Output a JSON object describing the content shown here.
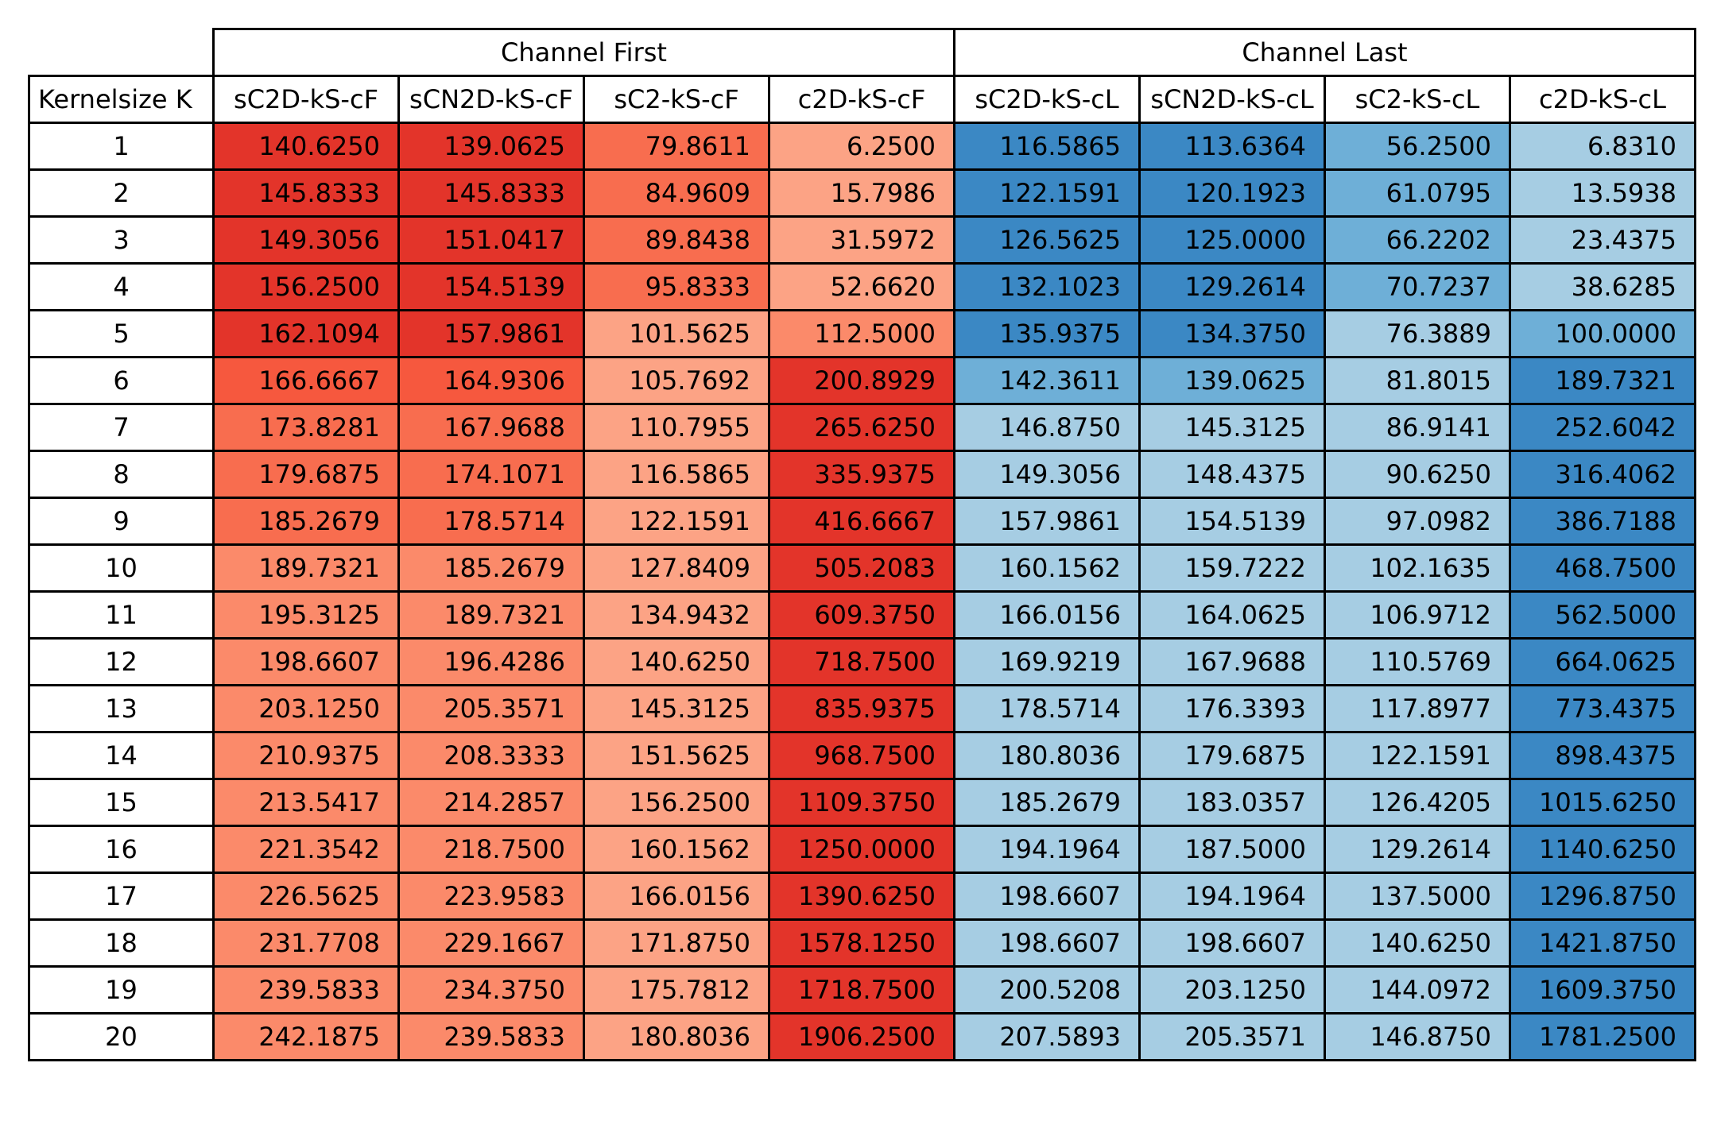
{
  "chart_data": {
    "type": "table",
    "group_headers": [
      "Channel First",
      "Channel Last"
    ],
    "row_header": "Kernelsize  K",
    "columns": [
      "sC2D-kS-cF",
      "sCN2D-kS-cF",
      "sC2-kS-cF",
      "c2D-kS-cF",
      "sC2D-kS-cL",
      "sCN2D-kS-cL",
      "sC2-kS-cL",
      "c2D-kS-cL"
    ],
    "kernel_sizes": [
      "1",
      "2",
      "3",
      "4",
      "5",
      "6",
      "7",
      "8",
      "9",
      "10",
      "11",
      "12",
      "13",
      "14",
      "15",
      "16",
      "17",
      "18",
      "19",
      "20"
    ],
    "values": [
      [
        "140.6250",
        "139.0625",
        "79.8611",
        "6.2500",
        "116.5865",
        "113.6364",
        "56.2500",
        "6.8310"
      ],
      [
        "145.8333",
        "145.8333",
        "84.9609",
        "15.7986",
        "122.1591",
        "120.1923",
        "61.0795",
        "13.5938"
      ],
      [
        "149.3056",
        "151.0417",
        "89.8438",
        "31.5972",
        "126.5625",
        "125.0000",
        "66.2202",
        "23.4375"
      ],
      [
        "156.2500",
        "154.5139",
        "95.8333",
        "52.6620",
        "132.1023",
        "129.2614",
        "70.7237",
        "38.6285"
      ],
      [
        "162.1094",
        "157.9861",
        "101.5625",
        "112.5000",
        "135.9375",
        "134.3750",
        "76.3889",
        "100.0000"
      ],
      [
        "166.6667",
        "164.9306",
        "105.7692",
        "200.8929",
        "142.3611",
        "139.0625",
        "81.8015",
        "189.7321"
      ],
      [
        "173.8281",
        "167.9688",
        "110.7955",
        "265.6250",
        "146.8750",
        "145.3125",
        "86.9141",
        "252.6042"
      ],
      [
        "179.6875",
        "174.1071",
        "116.5865",
        "335.9375",
        "149.3056",
        "148.4375",
        "90.6250",
        "316.4062"
      ],
      [
        "185.2679",
        "178.5714",
        "122.1591",
        "416.6667",
        "157.9861",
        "154.5139",
        "97.0982",
        "386.7188"
      ],
      [
        "189.7321",
        "185.2679",
        "127.8409",
        "505.2083",
        "160.1562",
        "159.7222",
        "102.1635",
        "468.7500"
      ],
      [
        "195.3125",
        "189.7321",
        "134.9432",
        "609.3750",
        "166.0156",
        "164.0625",
        "106.9712",
        "562.5000"
      ],
      [
        "198.6607",
        "196.4286",
        "140.6250",
        "718.7500",
        "169.9219",
        "167.9688",
        "110.5769",
        "664.0625"
      ],
      [
        "203.1250",
        "205.3571",
        "145.3125",
        "835.9375",
        "178.5714",
        "176.3393",
        "117.8977",
        "773.4375"
      ],
      [
        "210.9375",
        "208.3333",
        "151.5625",
        "968.7500",
        "180.8036",
        "179.6875",
        "122.1591",
        "898.4375"
      ],
      [
        "213.5417",
        "214.2857",
        "156.2500",
        "1109.3750",
        "185.2679",
        "183.0357",
        "126.4205",
        "1015.6250"
      ],
      [
        "221.3542",
        "218.7500",
        "160.1562",
        "1250.0000",
        "194.1964",
        "187.5000",
        "129.2614",
        "1140.6250"
      ],
      [
        "226.5625",
        "223.9583",
        "166.0156",
        "1390.6250",
        "198.6607",
        "194.1964",
        "137.5000",
        "1296.8750"
      ],
      [
        "231.7708",
        "229.1667",
        "171.8750",
        "1578.1250",
        "198.6607",
        "198.6607",
        "140.6250",
        "1421.8750"
      ],
      [
        "239.5833",
        "234.3750",
        "175.7812",
        "1718.7500",
        "200.5208",
        "203.1250",
        "144.0972",
        "1609.3750"
      ],
      [
        "242.1875",
        "239.5833",
        "180.8036",
        "1906.2500",
        "207.5893",
        "205.3571",
        "146.8750",
        "1781.2500"
      ]
    ],
    "cell_colors": [
      [
        "#e3342a",
        "#e3342a",
        "#f86d4f",
        "#fca385",
        "#3b88c4",
        "#3b88c4",
        "#6eafd7",
        "#a6cde3"
      ],
      [
        "#e3342a",
        "#e3342a",
        "#f86d4f",
        "#fca385",
        "#3b88c4",
        "#3b88c4",
        "#6eafd7",
        "#a6cde3"
      ],
      [
        "#e3342a",
        "#e3342a",
        "#f86d4f",
        "#fca385",
        "#3b88c4",
        "#3b88c4",
        "#6eafd7",
        "#a6cde3"
      ],
      [
        "#e3342a",
        "#e3342a",
        "#f86d4f",
        "#fca385",
        "#3b88c4",
        "#3b88c4",
        "#6eafd7",
        "#a6cde3"
      ],
      [
        "#e3342a",
        "#e3342a",
        "#fca385",
        "#fb8a6a",
        "#3b88c4",
        "#3b88c4",
        "#a6cde3",
        "#6eafd7"
      ],
      [
        "#f6583e",
        "#f6583e",
        "#fca385",
        "#e3342a",
        "#6eafd7",
        "#6eafd7",
        "#a6cde3",
        "#3b88c4"
      ],
      [
        "#f86d4f",
        "#f86d4f",
        "#fca385",
        "#e3342a",
        "#a6cde3",
        "#a6cde3",
        "#a6cde3",
        "#3b88c4"
      ],
      [
        "#f86d4f",
        "#f86d4f",
        "#fca385",
        "#e3342a",
        "#a6cde3",
        "#a6cde3",
        "#a6cde3",
        "#3b88c4"
      ],
      [
        "#f86d4f",
        "#f86d4f",
        "#fca385",
        "#e3342a",
        "#a6cde3",
        "#a6cde3",
        "#a6cde3",
        "#3b88c4"
      ],
      [
        "#fb8a6a",
        "#fb8a6a",
        "#fca385",
        "#e3342a",
        "#a6cde3",
        "#a6cde3",
        "#a6cde3",
        "#3b88c4"
      ],
      [
        "#fb8a6a",
        "#fb8a6a",
        "#fca385",
        "#e3342a",
        "#a6cde3",
        "#a6cde3",
        "#a6cde3",
        "#3b88c4"
      ],
      [
        "#fb8a6a",
        "#fb8a6a",
        "#fca385",
        "#e3342a",
        "#a6cde3",
        "#a6cde3",
        "#a6cde3",
        "#3b88c4"
      ],
      [
        "#fb8a6a",
        "#fb8a6a",
        "#fca385",
        "#e3342a",
        "#a6cde3",
        "#a6cde3",
        "#a6cde3",
        "#3b88c4"
      ],
      [
        "#fb8a6a",
        "#fb8a6a",
        "#fca385",
        "#e3342a",
        "#a6cde3",
        "#a6cde3",
        "#a6cde3",
        "#3b88c4"
      ],
      [
        "#fb8a6a",
        "#fb8a6a",
        "#fca385",
        "#e3342a",
        "#a6cde3",
        "#a6cde3",
        "#a6cde3",
        "#3b88c4"
      ],
      [
        "#fb8a6a",
        "#fb8a6a",
        "#fca385",
        "#e3342a",
        "#a6cde3",
        "#a6cde3",
        "#a6cde3",
        "#3b88c4"
      ],
      [
        "#fb8a6a",
        "#fb8a6a",
        "#fca385",
        "#e3342a",
        "#a6cde3",
        "#a6cde3",
        "#a6cde3",
        "#3b88c4"
      ],
      [
        "#fb8a6a",
        "#fb8a6a",
        "#fca385",
        "#e3342a",
        "#a6cde3",
        "#a6cde3",
        "#a6cde3",
        "#3b88c4"
      ],
      [
        "#fb8a6a",
        "#fb8a6a",
        "#fca385",
        "#e3342a",
        "#a6cde3",
        "#a6cde3",
        "#a6cde3",
        "#3b88c4"
      ],
      [
        "#fb8a6a",
        "#fb8a6a",
        "#fca385",
        "#e3342a",
        "#a6cde3",
        "#a6cde3",
        "#a6cde3",
        "#3b88c4"
      ]
    ]
  }
}
